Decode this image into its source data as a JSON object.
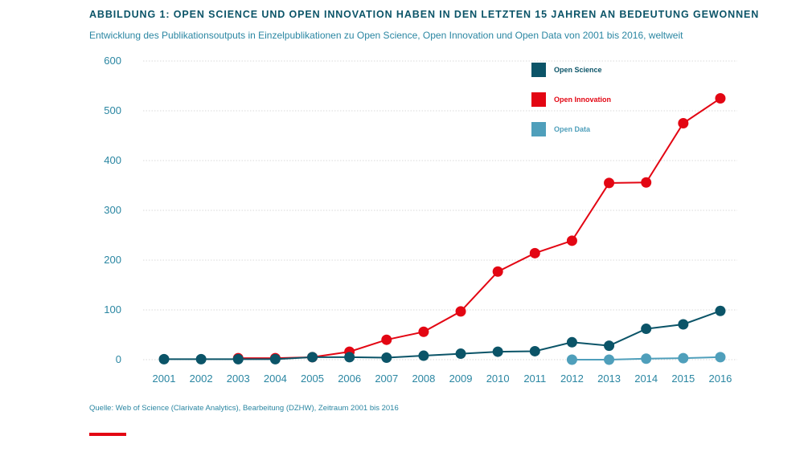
{
  "colors": {
    "title": "#0b5468",
    "text": "#2a86a2",
    "grid": "#d9d9d9",
    "accent": "#e30613"
  },
  "chart_data": {
    "type": "line",
    "title": "ABBILDUNG 1: OPEN SCIENCE UND OPEN INNOVATION HABEN IN DEN LETZTEN 15 JAHREN AN BEDEUTUNG GEWONNEN",
    "subtitle": "Entwicklung des Publikationsoutputs in Einzelpublikationen zu Open Science, Open Innovation und Open Data von 2001 bis 2016, weltweit",
    "source": "Quelle: Web of Science (Clarivate Analytics), Bearbeitung (DZHW), Zeitraum 2001 bis 2016",
    "categories": [
      "2001",
      "2002",
      "2003",
      "2004",
      "2005",
      "2006",
      "2007",
      "2008",
      "2009",
      "2010",
      "2011",
      "2012",
      "2013",
      "2014",
      "2015",
      "2016"
    ],
    "ylim": [
      0,
      600
    ],
    "yticks": [
      0,
      100,
      200,
      300,
      400,
      500,
      600
    ],
    "grid": true,
    "legend_position": "top-right",
    "series": [
      {
        "name": "Open Science",
        "color": "#0b5468",
        "values": [
          1,
          1,
          1,
          1,
          5,
          5,
          4,
          8,
          12,
          16,
          17,
          35,
          28,
          62,
          71,
          98
        ]
      },
      {
        "name": "Open Innovation",
        "color": "#e30613",
        "values": [
          null,
          null,
          3,
          3,
          5,
          16,
          40,
          56,
          97,
          177,
          214,
          239,
          355,
          356,
          475,
          525
        ]
      },
      {
        "name": "Open Data",
        "color": "#4f9fbb",
        "values": [
          null,
          null,
          null,
          null,
          null,
          null,
          null,
          null,
          null,
          null,
          null,
          0,
          0,
          2,
          3,
          5
        ]
      }
    ]
  }
}
